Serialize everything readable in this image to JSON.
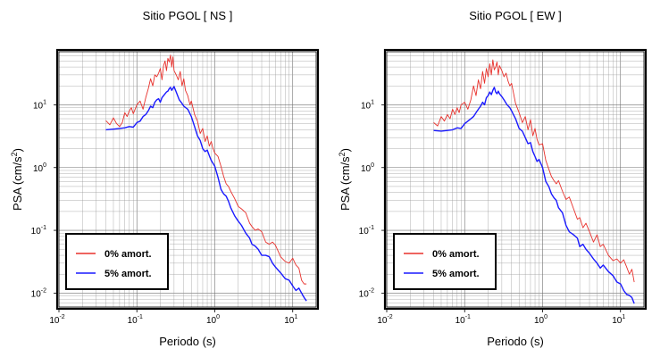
{
  "chart_data": [
    {
      "type": "line",
      "title": "Sitio PGOL [ NS ]",
      "xlabel": "Periodo (s)",
      "ylabel_base": "PSA (cm/s",
      "ylabel_exp": "2",
      "ylabel_close": ")",
      "x_scale": "log",
      "y_scale": "log",
      "xlim": [
        0.01,
        20
      ],
      "ylim": [
        0.006,
        70
      ],
      "x_ticks": [
        {
          "value": 0.01,
          "base": "10",
          "exp": "-2"
        },
        {
          "value": 0.1,
          "base": "10",
          "exp": "-1"
        },
        {
          "value": 1,
          "base": "10",
          "exp": "0"
        },
        {
          "value": 10,
          "base": "10",
          "exp": "1"
        }
      ],
      "y_ticks": [
        {
          "value": 0.01,
          "base": "10",
          "exp": "-2"
        },
        {
          "value": 0.1,
          "base": "10",
          "exp": "-1"
        },
        {
          "value": 1,
          "base": "10",
          "exp": "0"
        },
        {
          "value": 10,
          "base": "10",
          "exp": "1"
        }
      ],
      "grid": true,
      "legend_position": "bottom-left",
      "series": [
        {
          "name": "0% amort.",
          "color": "#e8312c",
          "x": [
            0.04,
            0.045,
            0.05,
            0.055,
            0.06,
            0.065,
            0.07,
            0.075,
            0.08,
            0.085,
            0.09,
            0.1,
            0.11,
            0.12,
            0.13,
            0.14,
            0.15,
            0.16,
            0.17,
            0.18,
            0.19,
            0.2,
            0.21,
            0.22,
            0.23,
            0.24,
            0.25,
            0.26,
            0.27,
            0.28,
            0.29,
            0.3,
            0.32,
            0.34,
            0.36,
            0.38,
            0.4,
            0.42,
            0.45,
            0.48,
            0.5,
            0.55,
            0.6,
            0.65,
            0.7,
            0.75,
            0.8,
            0.85,
            0.9,
            0.95,
            1.0,
            1.1,
            1.2,
            1.3,
            1.4,
            1.5,
            1.6,
            1.8,
            2.0,
            2.2,
            2.5,
            2.8,
            3.0,
            3.3,
            3.6,
            4.0,
            4.5,
            5.0,
            5.5,
            6.0,
            7.0,
            8.0,
            9.0,
            10.0,
            11.0,
            12.0,
            13.0,
            14.0,
            15.0
          ],
          "y": [
            5.6,
            4.8,
            6.2,
            5.0,
            4.5,
            5.2,
            7.5,
            6.5,
            8.0,
            9.0,
            7.2,
            10.0,
            11.5,
            8.5,
            13.0,
            18.0,
            26.0,
            20.0,
            30.0,
            28.0,
            32.0,
            38.0,
            25.0,
            42.0,
            50.0,
            35.0,
            55.0,
            48.0,
            62.0,
            40.0,
            58.0,
            35.0,
            30.0,
            25.0,
            34.0,
            20.0,
            26.0,
            17.0,
            14.0,
            10.0,
            11.5,
            7.0,
            5.5,
            3.5,
            4.2,
            2.6,
            3.2,
            2.2,
            2.6,
            2.0,
            1.7,
            1.5,
            1.05,
            0.72,
            0.55,
            0.5,
            0.42,
            0.32,
            0.24,
            0.22,
            0.19,
            0.13,
            0.115,
            0.1,
            0.105,
            0.095,
            0.065,
            0.06,
            0.065,
            0.058,
            0.038,
            0.032,
            0.03,
            0.036,
            0.028,
            0.025,
            0.016,
            0.014,
            0.014
          ]
        },
        {
          "name": "5% amort.",
          "color": "#1a1aff",
          "x": [
            0.04,
            0.05,
            0.06,
            0.07,
            0.08,
            0.09,
            0.1,
            0.11,
            0.12,
            0.13,
            0.14,
            0.15,
            0.16,
            0.17,
            0.18,
            0.19,
            0.2,
            0.21,
            0.22,
            0.23,
            0.24,
            0.25,
            0.26,
            0.27,
            0.28,
            0.3,
            0.32,
            0.35,
            0.38,
            0.4,
            0.45,
            0.5,
            0.55,
            0.6,
            0.65,
            0.7,
            0.75,
            0.8,
            0.85,
            0.9,
            1.0,
            1.1,
            1.2,
            1.3,
            1.4,
            1.5,
            1.6,
            1.8,
            2.0,
            2.2,
            2.5,
            2.8,
            3.0,
            3.3,
            3.6,
            4.0,
            4.5,
            5.0,
            5.5,
            6.0,
            7.0,
            8.0,
            9.0,
            10.0,
            11.0,
            12.0,
            13.0,
            14.0,
            15.0
          ],
          "y": [
            4.0,
            4.1,
            4.2,
            4.3,
            4.5,
            4.4,
            5.2,
            5.5,
            6.5,
            7.0,
            8.0,
            9.5,
            9.0,
            11.0,
            12.0,
            12.5,
            11.0,
            13.0,
            14.0,
            15.0,
            16.0,
            16.5,
            18.0,
            19.0,
            17.0,
            19.5,
            16.0,
            12.0,
            10.5,
            9.5,
            8.5,
            6.5,
            4.5,
            3.2,
            2.7,
            2.0,
            1.8,
            1.9,
            1.55,
            1.3,
            1.05,
            0.7,
            0.45,
            0.38,
            0.35,
            0.29,
            0.23,
            0.17,
            0.14,
            0.12,
            0.09,
            0.075,
            0.06,
            0.056,
            0.05,
            0.04,
            0.04,
            0.038,
            0.03,
            0.026,
            0.021,
            0.017,
            0.016,
            0.013,
            0.011,
            0.012,
            0.01,
            0.0085,
            0.0075
          ]
        }
      ]
    },
    {
      "type": "line",
      "title": "Sitio PGOL [ EW ]",
      "xlabel": "Periodo (s)",
      "ylabel_base": "PSA (cm/s",
      "ylabel_exp": "2",
      "ylabel_close": ")",
      "x_scale": "log",
      "y_scale": "log",
      "xlim": [
        0.01,
        20
      ],
      "ylim": [
        0.006,
        70
      ],
      "x_ticks": [
        {
          "value": 0.01,
          "base": "10",
          "exp": "-2"
        },
        {
          "value": 0.1,
          "base": "10",
          "exp": "-1"
        },
        {
          "value": 1,
          "base": "10",
          "exp": "0"
        },
        {
          "value": 10,
          "base": "10",
          "exp": "1"
        }
      ],
      "y_ticks": [
        {
          "value": 0.01,
          "base": "10",
          "exp": "-2"
        },
        {
          "value": 0.1,
          "base": "10",
          "exp": "-1"
        },
        {
          "value": 1,
          "base": "10",
          "exp": "0"
        },
        {
          "value": 10,
          "base": "10",
          "exp": "1"
        }
      ],
      "grid": true,
      "legend_position": "bottom-left",
      "series": [
        {
          "name": "0% amort.",
          "color": "#e8312c",
          "x": [
            0.04,
            0.045,
            0.05,
            0.055,
            0.06,
            0.065,
            0.07,
            0.075,
            0.08,
            0.085,
            0.09,
            0.1,
            0.11,
            0.12,
            0.13,
            0.14,
            0.15,
            0.16,
            0.17,
            0.18,
            0.19,
            0.2,
            0.21,
            0.22,
            0.23,
            0.24,
            0.25,
            0.26,
            0.27,
            0.28,
            0.3,
            0.32,
            0.34,
            0.36,
            0.38,
            0.4,
            0.45,
            0.5,
            0.55,
            0.6,
            0.65,
            0.7,
            0.75,
            0.8,
            0.85,
            0.9,
            1.0,
            1.1,
            1.2,
            1.3,
            1.4,
            1.5,
            1.6,
            1.8,
            2.0,
            2.2,
            2.5,
            2.8,
            3.0,
            3.3,
            3.6,
            4.0,
            4.5,
            5.0,
            5.5,
            6.0,
            7.0,
            8.0,
            9.0,
            10.0,
            11.0,
            12.0,
            13.0,
            14.0,
            15.0
          ],
          "y": [
            5.2,
            4.6,
            6.5,
            5.5,
            7.0,
            6.0,
            8.5,
            7.0,
            9.0,
            7.5,
            10.0,
            11.0,
            8.5,
            12.0,
            20.0,
            14.0,
            25.0,
            18.0,
            34.0,
            22.0,
            38.0,
            28.0,
            45.0,
            30.0,
            52.0,
            36.0,
            40.0,
            48.0,
            30.0,
            42.0,
            35.0,
            28.0,
            32.0,
            24.0,
            20.0,
            22.0,
            10.5,
            7.5,
            5.2,
            6.5,
            4.0,
            5.8,
            3.2,
            4.2,
            2.8,
            2.3,
            2.4,
            1.3,
            0.95,
            0.72,
            0.62,
            0.55,
            0.62,
            0.42,
            0.31,
            0.34,
            0.22,
            0.15,
            0.16,
            0.11,
            0.13,
            0.095,
            0.065,
            0.085,
            0.055,
            0.06,
            0.04,
            0.033,
            0.035,
            0.03,
            0.034,
            0.026,
            0.02,
            0.024,
            0.015
          ]
        },
        {
          "name": "5% amort.",
          "color": "#1a1aff",
          "x": [
            0.04,
            0.05,
            0.06,
            0.07,
            0.08,
            0.09,
            0.1,
            0.11,
            0.12,
            0.13,
            0.14,
            0.15,
            0.16,
            0.17,
            0.18,
            0.19,
            0.2,
            0.21,
            0.22,
            0.23,
            0.24,
            0.25,
            0.26,
            0.27,
            0.28,
            0.3,
            0.32,
            0.35,
            0.38,
            0.4,
            0.45,
            0.5,
            0.55,
            0.6,
            0.65,
            0.7,
            0.75,
            0.8,
            0.85,
            0.9,
            1.0,
            1.1,
            1.2,
            1.3,
            1.4,
            1.5,
            1.6,
            1.8,
            2.0,
            2.2,
            2.5,
            2.8,
            3.0,
            3.3,
            3.6,
            4.0,
            4.5,
            5.0,
            5.5,
            6.0,
            7.0,
            8.0,
            9.0,
            10.0,
            11.0,
            12.0,
            13.0,
            14.0,
            15.0
          ],
          "y": [
            3.9,
            3.8,
            3.9,
            4.0,
            4.3,
            4.2,
            5.0,
            5.5,
            6.0,
            6.5,
            7.5,
            8.5,
            9.5,
            11.0,
            10.0,
            13.0,
            14.0,
            16.0,
            14.5,
            17.0,
            19.0,
            16.0,
            15.0,
            16.5,
            15.0,
            13.5,
            12.0,
            10.0,
            9.0,
            8.0,
            6.0,
            4.2,
            3.8,
            3.0,
            2.4,
            2.5,
            1.8,
            1.5,
            1.25,
            1.35,
            1.0,
            0.6,
            0.5,
            0.38,
            0.33,
            0.3,
            0.23,
            0.19,
            0.12,
            0.095,
            0.085,
            0.075,
            0.055,
            0.06,
            0.05,
            0.043,
            0.035,
            0.03,
            0.025,
            0.028,
            0.022,
            0.019,
            0.015,
            0.014,
            0.011,
            0.0095,
            0.0092,
            0.0085,
            0.0068
          ]
        }
      ]
    }
  ]
}
